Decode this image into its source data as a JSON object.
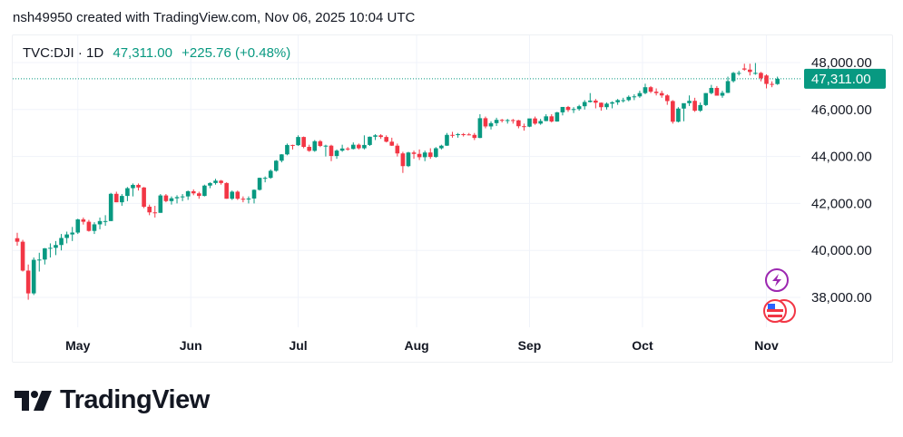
{
  "credit": "nsh49950 created with TradingView.com, Nov 06, 2025 10:04 UTC",
  "legend": {
    "symbol": "TVC:DJI · 1D",
    "last": "47,311.00",
    "change": "+225.76 (+0.48%)"
  },
  "price_label": "47,311.00",
  "logo_text": "TradingView",
  "colors": {
    "up": "#089981",
    "down": "#f23645",
    "grid": "#f0f3fa",
    "event": "#9c27b0"
  },
  "icons": [
    "lightning-event-icon",
    "us-flag-icon"
  ],
  "chart_data": {
    "type": "candlestick",
    "title": "TVC:DJI · 1D",
    "ylim": [
      36800,
      49200
    ],
    "y_ticks": [
      48000,
      46000,
      44000,
      42000,
      40000,
      38000
    ],
    "y_tick_labels": [
      "48,000.00",
      "46,000.00",
      "44,000.00",
      "42,000.00",
      "40,000.00",
      "38,000.00"
    ],
    "x_ticks": [
      {
        "label": "May",
        "index": 11
      },
      {
        "label": "Jun",
        "index": 31.5
      },
      {
        "label": "Jul",
        "index": 51
      },
      {
        "label": "Aug",
        "index": 72.5
      },
      {
        "label": "Sep",
        "index": 93
      },
      {
        "label": "Oct",
        "index": 113.5
      },
      {
        "label": "Nov",
        "index": 136
      }
    ],
    "last_price": 47311,
    "ohlc": [
      [
        40520,
        40750,
        40200,
        40370
      ],
      [
        40370,
        40450,
        39100,
        39140
      ],
      [
        39140,
        39400,
        37900,
        38170
      ],
      [
        38170,
        39700,
        38100,
        39600
      ],
      [
        39600,
        39900,
        39100,
        39610
      ],
      [
        39610,
        40100,
        39400,
        40090
      ],
      [
        40090,
        40300,
        39700,
        40110
      ],
      [
        40110,
        40400,
        39800,
        40230
      ],
      [
        40230,
        40700,
        40000,
        40530
      ],
      [
        40530,
        40800,
        40300,
        40680
      ],
      [
        40680,
        41000,
        40400,
        40760
      ],
      [
        40760,
        41350,
        40700,
        41320
      ],
      [
        41320,
        41400,
        41100,
        41220
      ],
      [
        41220,
        41300,
        40800,
        40830
      ],
      [
        40830,
        41200,
        40700,
        41110
      ],
      [
        41110,
        41400,
        40900,
        41250
      ],
      [
        41250,
        41500,
        41050,
        41250
      ],
      [
        41250,
        42450,
        41250,
        42410
      ],
      [
        42410,
        42500,
        42050,
        42050
      ],
      [
        42050,
        42400,
        41900,
        42320
      ],
      [
        42320,
        42700,
        42100,
        42650
      ],
      [
        42650,
        42850,
        42300,
        42790
      ],
      [
        42790,
        42850,
        42550,
        42680
      ],
      [
        42680,
        42700,
        41800,
        41860
      ],
      [
        41860,
        41950,
        41500,
        41620
      ],
      [
        41620,
        41900,
        41400,
        41600
      ],
      [
        41600,
        42400,
        41600,
        42340
      ],
      [
        42340,
        42400,
        42050,
        42100
      ],
      [
        42100,
        42300,
        41950,
        42220
      ],
      [
        42220,
        42350,
        42000,
        42270
      ],
      [
        42270,
        42400,
        42100,
        42300
      ],
      [
        42300,
        42550,
        42150,
        42520
      ],
      [
        42520,
        42600,
        42350,
        42430
      ],
      [
        42430,
        42500,
        42200,
        42320
      ],
      [
        42320,
        42800,
        42300,
        42760
      ],
      [
        42760,
        42900,
        42650,
        42870
      ],
      [
        42870,
        43050,
        42800,
        42970
      ],
      [
        42970,
        43000,
        42800,
        42870
      ],
      [
        42870,
        42900,
        42200,
        42200
      ],
      [
        42200,
        42550,
        42150,
        42500
      ],
      [
        42500,
        42550,
        42150,
        42200
      ],
      [
        42200,
        42300,
        42050,
        42170
      ],
      [
        42170,
        42300,
        42000,
        42210
      ],
      [
        42210,
        42600,
        42000,
        42580
      ],
      [
        42580,
        43100,
        42550,
        43090
      ],
      [
        43090,
        43150,
        42900,
        43090
      ],
      [
        43090,
        43450,
        43050,
        43390
      ],
      [
        43390,
        43850,
        43350,
        43820
      ],
      [
        43820,
        44100,
        43750,
        44090
      ],
      [
        44090,
        44550,
        44050,
        44490
      ],
      [
        44490,
        44500,
        44300,
        44480
      ],
      [
        44480,
        44900,
        44450,
        44830
      ],
      [
        44830,
        44850,
        44350,
        44410
      ],
      [
        44410,
        44500,
        44200,
        44240
      ],
      [
        44240,
        44700,
        44200,
        44650
      ],
      [
        44650,
        44700,
        44400,
        44450
      ],
      [
        44450,
        44500,
        44000,
        44460
      ],
      [
        44460,
        44500,
        43800,
        44020
      ],
      [
        44020,
        44300,
        43900,
        44250
      ],
      [
        44250,
        44500,
        44200,
        44340
      ],
      [
        44340,
        44400,
        44250,
        44320
      ],
      [
        44320,
        44600,
        44300,
        44500
      ],
      [
        44500,
        44550,
        44300,
        44350
      ],
      [
        44350,
        44900,
        44300,
        44490
      ],
      [
        44490,
        44850,
        44450,
        44840
      ],
      [
        44840,
        44950,
        44700,
        44900
      ],
      [
        44900,
        44950,
        44750,
        44830
      ],
      [
        44830,
        44900,
        44600,
        44630
      ],
      [
        44630,
        44800,
        44450,
        44460
      ],
      [
        44460,
        44550,
        44000,
        44130
      ],
      [
        44130,
        44200,
        43300,
        43590
      ],
      [
        43590,
        44200,
        43550,
        44170
      ],
      [
        44170,
        44250,
        43900,
        44110
      ],
      [
        44110,
        44300,
        43850,
        43970
      ],
      [
        43970,
        44250,
        43800,
        44170
      ],
      [
        44170,
        44350,
        43900,
        43980
      ],
      [
        43980,
        44400,
        43950,
        44350
      ],
      [
        44350,
        44500,
        44300,
        44460
      ],
      [
        44460,
        45000,
        44450,
        44920
      ],
      [
        44920,
        45050,
        44800,
        44910
      ],
      [
        44910,
        45000,
        44800,
        44950
      ],
      [
        44950,
        45000,
        44850,
        44940
      ],
      [
        44940,
        45000,
        44900,
        44920
      ],
      [
        44920,
        45000,
        44700,
        44790
      ],
      [
        44790,
        45800,
        44780,
        45630
      ],
      [
        45630,
        45700,
        45200,
        45280
      ],
      [
        45280,
        45500,
        45150,
        45420
      ],
      [
        45420,
        45650,
        45300,
        45560
      ],
      [
        45560,
        45600,
        45450,
        45540
      ],
      [
        45540,
        45600,
        45400,
        45550
      ],
      [
        45550,
        45600,
        45400,
        45540
      ],
      [
        45540,
        45560,
        45200,
        45290
      ],
      [
        45290,
        45400,
        45100,
        45270
      ],
      [
        45270,
        45600,
        45250,
        45620
      ],
      [
        45620,
        45700,
        45350,
        45400
      ],
      [
        45400,
        45600,
        45350,
        45510
      ],
      [
        45510,
        45800,
        45500,
        45710
      ],
      [
        45710,
        45800,
        45450,
        45490
      ],
      [
        45490,
        45900,
        45480,
        45880
      ],
      [
        45880,
        46100,
        45750,
        46110
      ],
      [
        46110,
        46150,
        45900,
        45980
      ],
      [
        45980,
        46100,
        45850,
        46020
      ],
      [
        46020,
        46200,
        45950,
        46140
      ],
      [
        46140,
        46400,
        46000,
        46320
      ],
      [
        46320,
        46700,
        46300,
        46380
      ],
      [
        46380,
        46450,
        46050,
        46290
      ],
      [
        46290,
        46300,
        45950,
        46100
      ],
      [
        46100,
        46300,
        46000,
        46250
      ],
      [
        46250,
        46350,
        46050,
        46310
      ],
      [
        46310,
        46450,
        46200,
        46400
      ],
      [
        46400,
        46500,
        46300,
        46400
      ],
      [
        46400,
        46600,
        46350,
        46540
      ],
      [
        46540,
        46650,
        46400,
        46560
      ],
      [
        46560,
        46800,
        46500,
        46700
      ],
      [
        46700,
        47100,
        46650,
        46950
      ],
      [
        46950,
        47000,
        46700,
        46760
      ],
      [
        46760,
        46900,
        46600,
        46700
      ],
      [
        46700,
        46800,
        46500,
        46600
      ],
      [
        46600,
        46650,
        46200,
        46360
      ],
      [
        46360,
        46400,
        45400,
        45480
      ],
      [
        45480,
        46100,
        45450,
        46040
      ],
      [
        46040,
        46250,
        45500,
        46270
      ],
      [
        46270,
        46600,
        46150,
        46370
      ],
      [
        46370,
        46500,
        45900,
        45950
      ],
      [
        45950,
        46300,
        45900,
        46190
      ],
      [
        46190,
        46700,
        46150,
        46700
      ],
      [
        46700,
        47050,
        46650,
        46920
      ],
      [
        46920,
        47000,
        46600,
        46590
      ],
      [
        46590,
        46800,
        46500,
        46710
      ],
      [
        46710,
        47400,
        46700,
        47210
      ],
      [
        47210,
        47600,
        47150,
        47560
      ],
      [
        47540,
        47650,
        47450,
        47560
      ],
      [
        47750,
        47950,
        47650,
        47700
      ],
      [
        47700,
        47950,
        47450,
        47600
      ],
      [
        47520,
        47980,
        47480,
        47560
      ],
      [
        47560,
        47600,
        47200,
        47330
      ],
      [
        47450,
        47500,
        46900,
        47090
      ],
      [
        47090,
        47200,
        46950,
        47085
      ],
      [
        47085,
        47400,
        47050,
        47311
      ]
    ]
  }
}
